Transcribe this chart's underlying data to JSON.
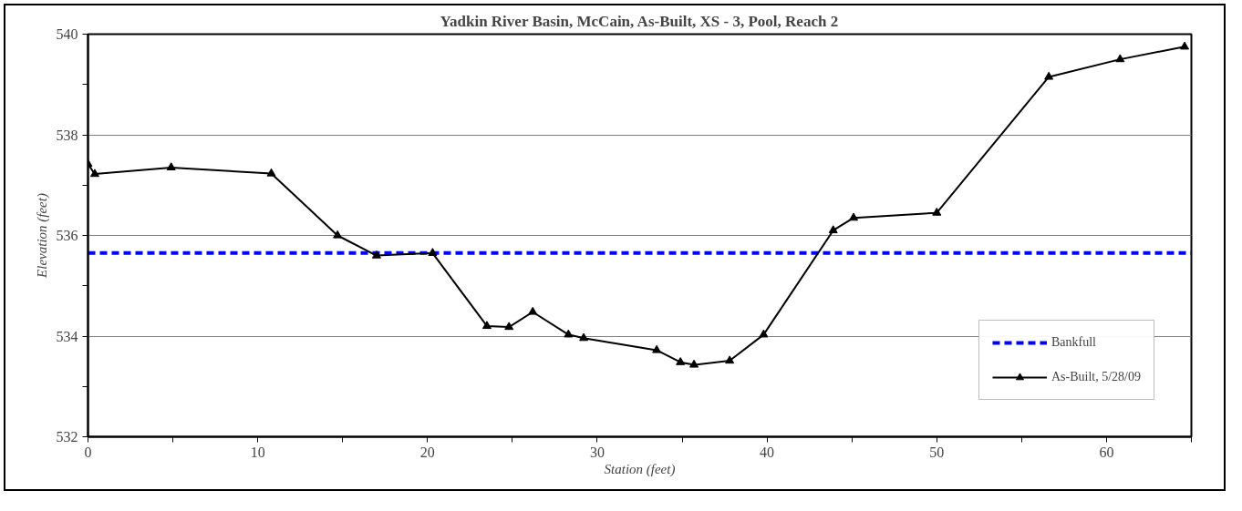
{
  "chart_data": {
    "type": "line",
    "title": "Yadkin River Basin, McCain, As-Built, XS - 3, Pool, Reach 2",
    "xlabel": "Station (feet)",
    "ylabel": "Elevation (feet)",
    "xlim": [
      0,
      65
    ],
    "ylim": [
      532,
      540
    ],
    "xticks": [
      0,
      {
        "value": 5,
        "label": null
      },
      10,
      {
        "value": 15,
        "label": null
      },
      20,
      {
        "value": 25,
        "label": null
      },
      30,
      {
        "value": 35,
        "label": null
      },
      40,
      {
        "value": 45,
        "label": null
      },
      50,
      {
        "value": 55,
        "label": null
      },
      60,
      {
        "value": 65,
        "label": null
      }
    ],
    "yticks": [
      532,
      {
        "value": 533,
        "label": null
      },
      534,
      {
        "value": 535,
        "label": null
      },
      536,
      {
        "value": 537,
        "label": null
      },
      538,
      {
        "value": 539,
        "label": null
      },
      540
    ],
    "grid": "y",
    "legend": "bottom right",
    "series": [
      {
        "name": "Bankfull",
        "color": "#0000ff",
        "line_style": "dashed",
        "marker": "none",
        "x": [
          0,
          65
        ],
        "values": [
          535.65,
          535.65
        ]
      },
      {
        "name": "As-Built, 5/28/09",
        "color": "#000000",
        "line_style": "solid",
        "marker": "triangle",
        "x": [
          0,
          0.4,
          4.9,
          10.8,
          14.7,
          17.0,
          20.3,
          23.5,
          24.8,
          26.2,
          28.3,
          29.2,
          33.5,
          34.9,
          35.7,
          37.8,
          39.8,
          43.9,
          45.1,
          50.0,
          56.6,
          60.8,
          64.6
        ],
        "values": [
          537.42,
          537.22,
          537.35,
          537.23,
          536.0,
          535.6,
          535.65,
          534.2,
          534.18,
          534.48,
          534.03,
          533.96,
          533.72,
          533.48,
          533.43,
          533.51,
          534.03,
          536.1,
          536.35,
          536.45,
          539.15,
          539.5,
          539.75
        ]
      }
    ]
  }
}
